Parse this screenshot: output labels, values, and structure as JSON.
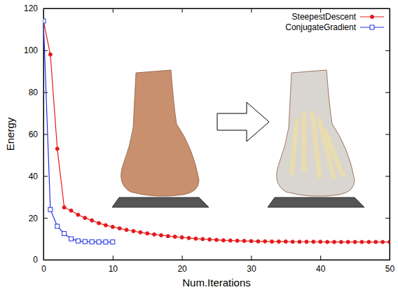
{
  "chart_data": {
    "type": "line",
    "x_label": "Num.Iterations",
    "y_label": "Energy",
    "xlim": [
      0,
      50
    ],
    "ylim": [
      0,
      120
    ],
    "xticks": [
      0,
      10,
      20,
      30,
      40,
      50
    ],
    "yticks": [
      0,
      20,
      40,
      60,
      80,
      100,
      120
    ],
    "grid": false,
    "legend": "upper right",
    "series": [
      {
        "name": "SteepestDescent",
        "color": "#e41a1c",
        "marker": "circle",
        "line_style": "solid",
        "x": [
          0,
          1,
          2,
          3,
          4,
          5,
          6,
          7,
          8,
          9,
          10,
          11,
          12,
          13,
          14,
          15,
          16,
          17,
          18,
          19,
          20,
          21,
          22,
          23,
          24,
          25,
          26,
          27,
          28,
          29,
          30,
          31,
          32,
          33,
          34,
          35,
          36,
          37,
          38,
          39,
          40,
          41,
          42,
          43,
          44,
          45,
          46,
          47,
          48,
          49,
          50
        ],
        "values": [
          114,
          98,
          53,
          25,
          23.5,
          21.5,
          20,
          18.8,
          17.5,
          16.5,
          15.7,
          15,
          14.3,
          13.7,
          13.1,
          12.6,
          12.1,
          11.7,
          11.3,
          11,
          10.7,
          10.4,
          10.1,
          9.9,
          9.7,
          9.5,
          9.3,
          9.2,
          9.1,
          9,
          8.9,
          8.8,
          8.8,
          8.7,
          8.7,
          8.7,
          8.6,
          8.6,
          8.6,
          8.6,
          8.6,
          8.5,
          8.5,
          8.5,
          8.5,
          8.5,
          8.5,
          8.5,
          8.5,
          8.5,
          8.5
        ]
      },
      {
        "name": "ConjugateGradient",
        "color": "#1f2ee0",
        "marker": "open-square",
        "line_style": "solid",
        "x": [
          0,
          1,
          2,
          3,
          4,
          5,
          6,
          7,
          8,
          9,
          10
        ],
        "values": [
          114,
          24,
          16,
          12.5,
          10,
          9,
          8.7,
          8.6,
          8.5,
          8.5,
          8.5
        ]
      }
    ]
  }
}
